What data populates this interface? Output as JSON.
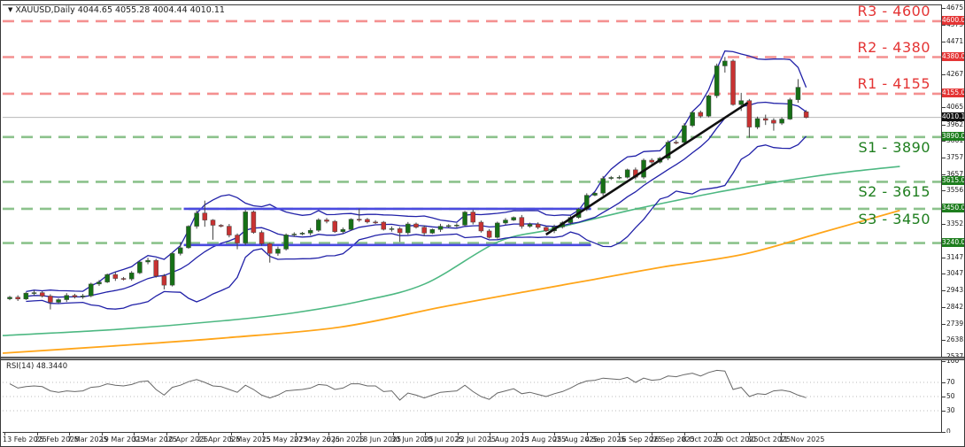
{
  "window": {
    "title": "XAUUSD,Daily  4044.65 4055.28 4004.44 4010.11",
    "title_marker": "▼"
  },
  "colors": {
    "background": "#ffffff",
    "border": "#3a3a3a",
    "candle_up": "#167016",
    "candle_down": "#c83232",
    "wick": "#444444",
    "bollinger": "#2121a8",
    "ma_green": "#4db882",
    "ma_orange": "#ffa519",
    "trendline": "#101010",
    "channel": "#4a4ae0",
    "resistance_line": "#f49090",
    "resistance_text": "#e43434",
    "support_line": "#8cc28c",
    "support_text": "#1e7e1e",
    "current_price_line": "#b8b8b8",
    "current_price_box": "#111111",
    "rsi_line": "#666666",
    "rsi_grid": "#bbbbbb"
  },
  "chart_data": {
    "type": "candlestick",
    "symbol": "XAUUSD",
    "timeframe": "Daily",
    "ohlc_current": {
      "open": "4044.65",
      "high": "4055.28",
      "low": "4004.44",
      "close": "4010.11"
    },
    "ylim": [
      2537.75,
      4697.5
    ],
    "y_axis_ticks": [
      "4675.80",
      "4575.15",
      "4471.45",
      "4267.10",
      "4065.80",
      "3962.10",
      "3861.45",
      "3757.75",
      "3657.10",
      "3556.45",
      "3352.10",
      "3147.75",
      "3047.10",
      "2943.40",
      "2842.75",
      "2739.65",
      "2638.40",
      "2537.75"
    ],
    "x_axis_labels": [
      "13 Feb 2025",
      "25 Feb 2025",
      "7 Mar 2025",
      "19 Mar 2025",
      "31 Mar 2025",
      "10 Apr 2025",
      "23 Apr 2025",
      "5 May 2025",
      "15 May 2025",
      "27 May 2025",
      "6 Jun 2025",
      "18 Jun 2025",
      "30 Jun 2025",
      "10 Jul 2025",
      "22 Jul 2025",
      "1 Aug 2025",
      "13 Aug 2025",
      "25 Aug 2025",
      "4 Sep 2025",
      "16 Sep 2025",
      "26 Sep 2025",
      "8 Oct 2025",
      "20 Oct 2025",
      "30 Oct 2025",
      "11 Nov 2025"
    ],
    "levels": {
      "resistance": [
        {
          "label": "R3 - 4600",
          "price": 4600,
          "box": "4600.00"
        },
        {
          "label": "R2 - 4380",
          "price": 4380,
          "box": "4380.00"
        },
        {
          "label": "R1 - 4155",
          "price": 4155,
          "box": "4155.00"
        }
      ],
      "support": [
        {
          "label": "S1 - 3890",
          "price": 3890,
          "box": "3890.00"
        },
        {
          "label": "S2 - 3615",
          "price": 3615,
          "box": "3615.00"
        },
        {
          "label": "S3 - 3450",
          "price": 3450,
          "box": "3450.00"
        },
        {
          "label": "",
          "price": 3240,
          "box": "3240.00"
        }
      ]
    },
    "current_price": {
      "price": 4010.11,
      "box": "4010.11"
    },
    "overlays": {
      "bollinger": {
        "window": 10,
        "deviations": 2
      },
      "channel": {
        "x1_pct": 19.3,
        "x2_pct": 62.7,
        "top": 3450,
        "bottom": 3228
      },
      "trendline": {
        "x1_pct": 57.9,
        "price1": 3292,
        "x2_pct": 79.4,
        "price2": 4100
      },
      "ma_green_points": [
        [
          0,
          2673
        ],
        [
          12,
          2710
        ],
        [
          24,
          2766
        ],
        [
          31,
          2812
        ],
        [
          38,
          2882
        ],
        [
          45,
          2990
        ],
        [
          52.7,
          3245
        ],
        [
          58,
          3318
        ],
        [
          62,
          3374
        ],
        [
          66.8,
          3440
        ],
        [
          71.6,
          3499
        ],
        [
          76,
          3550
        ],
        [
          81,
          3600
        ],
        [
          86,
          3645
        ],
        [
          91,
          3682
        ],
        [
          95.6,
          3710
        ]
      ],
      "ma_orange_points": [
        [
          0,
          2565
        ],
        [
          12,
          2610
        ],
        [
          24,
          2660
        ],
        [
          36,
          2725
        ],
        [
          47,
          2850
        ],
        [
          56,
          2945
        ],
        [
          62.8,
          3015
        ],
        [
          70,
          3090
        ],
        [
          79,
          3172
        ],
        [
          87,
          3300
        ],
        [
          95.6,
          3440
        ]
      ]
    },
    "candles": [
      [
        2898,
        2916,
        2890,
        2908
      ],
      [
        2908,
        2920,
        2885,
        2897
      ],
      [
        2897,
        2939,
        2891,
        2933
      ],
      [
        2933,
        2951,
        2918,
        2936
      ],
      [
        2936,
        2945,
        2906,
        2915
      ],
      [
        2915,
        2926,
        2833,
        2877
      ],
      [
        2877,
        2900,
        2870,
        2893
      ],
      [
        2893,
        2933,
        2879,
        2919
      ],
      [
        2919,
        2929,
        2900,
        2910
      ],
      [
        2910,
        2928,
        2898,
        2916
      ],
      [
        2916,
        2997,
        2908,
        2989
      ],
      [
        2989,
        3013,
        2977,
        3001
      ],
      [
        3001,
        3053,
        2995,
        3047
      ],
      [
        3047,
        3062,
        3008,
        3023
      ],
      [
        3023,
        3032,
        3011,
        3020
      ],
      [
        3020,
        3068,
        3009,
        3057
      ],
      [
        3057,
        3131,
        3050,
        3124
      ],
      [
        3124,
        3150,
        3110,
        3134
      ],
      [
        3134,
        3144,
        3028,
        3038
      ],
      [
        3038,
        3050,
        2956,
        2982
      ],
      [
        2982,
        3184,
        2974,
        3176
      ],
      [
        3176,
        3245,
        3164,
        3211
      ],
      [
        3211,
        3349,
        3205,
        3343
      ],
      [
        3343,
        3439,
        3328,
        3424
      ],
      [
        3424,
        3500,
        3340,
        3381
      ],
      [
        3381,
        3386,
        3260,
        3349
      ],
      [
        3349,
        3356,
        3336,
        3343
      ],
      [
        3343,
        3357,
        3275,
        3289
      ],
      [
        3289,
        3299,
        3202,
        3240
      ],
      [
        3240,
        3443,
        3228,
        3431
      ],
      [
        3431,
        3439,
        3297,
        3305
      ],
      [
        3305,
        3317,
        3224,
        3236
      ],
      [
        3236,
        3242,
        3120,
        3177
      ],
      [
        3177,
        3218,
        3162,
        3203
      ],
      [
        3203,
        3299,
        3194,
        3290
      ],
      [
        3290,
        3306,
        3279,
        3295
      ],
      [
        3295,
        3308,
        3288,
        3301
      ],
      [
        3301,
        3332,
        3287,
        3318
      ],
      [
        3318,
        3392,
        3308,
        3382
      ],
      [
        3382,
        3394,
        3361,
        3373
      ],
      [
        3373,
        3381,
        3302,
        3310
      ],
      [
        3310,
        3335,
        3298,
        3323
      ],
      [
        3323,
        3392,
        3317,
        3386
      ],
      [
        3386,
        3451,
        3370,
        3385
      ],
      [
        3385,
        3394,
        3360,
        3369
      ],
      [
        3369,
        3380,
        3357,
        3368
      ],
      [
        3368,
        3375,
        3317,
        3324
      ],
      [
        3324,
        3342,
        3310,
        3328
      ],
      [
        3328,
        3338,
        3247,
        3303
      ],
      [
        3303,
        3369,
        3291,
        3357
      ],
      [
        3357,
        3365,
        3329,
        3337
      ],
      [
        3337,
        3349,
        3283,
        3301
      ],
      [
        3301,
        3329,
        3295,
        3323
      ],
      [
        3323,
        3358,
        3308,
        3343
      ],
      [
        3343,
        3356,
        3334,
        3347
      ],
      [
        3347,
        3361,
        3336,
        3350
      ],
      [
        3350,
        3437,
        3343,
        3430
      ],
      [
        3430,
        3444,
        3354,
        3368
      ],
      [
        3368,
        3378,
        3304,
        3314
      ],
      [
        3314,
        3326,
        3268,
        3275
      ],
      [
        3275,
        3371,
        3267,
        3363
      ],
      [
        3363,
        3393,
        3351,
        3381
      ],
      [
        3381,
        3403,
        3375,
        3397
      ],
      [
        3397,
        3412,
        3328,
        3343
      ],
      [
        3343,
        3365,
        3334,
        3356
      ],
      [
        3356,
        3367,
        3325,
        3336
      ],
      [
        3336,
        3343,
        3308,
        3315
      ],
      [
        3315,
        3353,
        3301,
        3339
      ],
      [
        3339,
        3375,
        3329,
        3365
      ],
      [
        3365,
        3409,
        3353,
        3397
      ],
      [
        3397,
        3456,
        3389,
        3448
      ],
      [
        3448,
        3545,
        3436,
        3533
      ],
      [
        3533,
        3552,
        3527,
        3546
      ],
      [
        3546,
        3651,
        3531,
        3636
      ],
      [
        3636,
        3651,
        3627,
        3642
      ],
      [
        3642,
        3654,
        3631,
        3643
      ],
      [
        3643,
        3696,
        3636,
        3689
      ],
      [
        3689,
        3703,
        3630,
        3644
      ],
      [
        3644,
        3758,
        3634,
        3748
      ],
      [
        3748,
        3760,
        3724,
        3736
      ],
      [
        3736,
        3768,
        3728,
        3760
      ],
      [
        3760,
        3870,
        3748,
        3858
      ],
      [
        3858,
        3871,
        3845,
        3857
      ],
      [
        3857,
        3975,
        3842,
        3960
      ],
      [
        3960,
        4050,
        3951,
        4041
      ],
      [
        4041,
        4052,
        4007,
        4018
      ],
      [
        4018,
        4150,
        4011,
        4143
      ],
      [
        4143,
        4340,
        4129,
        4326
      ],
      [
        4326,
        4381,
        4285,
        4356
      ],
      [
        4356,
        4366,
        4082,
        4089
      ],
      [
        4089,
        4161,
        4050,
        4113
      ],
      [
        4113,
        4123,
        3886,
        3951
      ],
      [
        3951,
        4015,
        3939,
        4003
      ],
      [
        4003,
        4027,
        3964,
        3993
      ],
      [
        3993,
        4005,
        3929,
        3975
      ],
      [
        3975,
        4011,
        3964,
        4000
      ],
      [
        4000,
        4130,
        3995,
        4119
      ],
      [
        4119,
        4245,
        4100,
        4195
      ],
      [
        4044.65,
        4055.28,
        4004.44,
        4010.11
      ]
    ],
    "rsi": {
      "label": "RSI(14) 48.3440",
      "current": 48.344,
      "levels": [
        70,
        50,
        30
      ],
      "axis_labels": [
        "100",
        "70",
        "50",
        "30",
        "0"
      ],
      "values": [
        68,
        62,
        64,
        65,
        64,
        58,
        56,
        58,
        57,
        58,
        63,
        64,
        68,
        66,
        65,
        67,
        71,
        72,
        60,
        52,
        63,
        66,
        71,
        74,
        70,
        65,
        64,
        60,
        56,
        66,
        60,
        52,
        48,
        52,
        58,
        59,
        60,
        62,
        67,
        66,
        60,
        62,
        68,
        68,
        65,
        65,
        57,
        58,
        45,
        55,
        52,
        48,
        52,
        56,
        57,
        58,
        66,
        57,
        50,
        46,
        55,
        58,
        61,
        54,
        56,
        53,
        50,
        54,
        57,
        62,
        68,
        72,
        73,
        76,
        75,
        74,
        77,
        70,
        76,
        73,
        74,
        79,
        78,
        81,
        83,
        79,
        84,
        87,
        86,
        60,
        63,
        50,
        54,
        53,
        58,
        59,
        57,
        52,
        48.34
      ]
    }
  }
}
